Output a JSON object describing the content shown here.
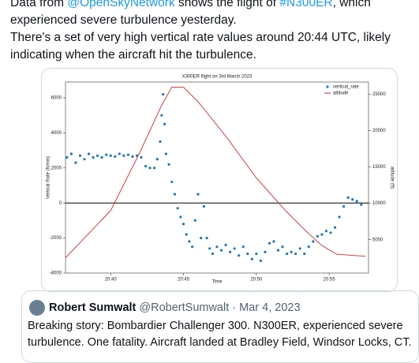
{
  "tweet": {
    "lines": [
      [
        "Data from ",
        "@OpenSkyNetwork",
        " shows the flight of ",
        "#N300ER",
        ", which"
      ],
      [
        "experienced severe turbulence yesterday."
      ],
      [
        "There's a set of very high vertical rate values around 20:44 UTC, likely"
      ],
      [
        "indicating when the aircraft hit the turbulence."
      ]
    ]
  },
  "chart_data": {
    "type": "scatter",
    "title": "X300ER flight on 3rd March 2023",
    "x_label": "Time",
    "y_label": "Vertical Rate (ft/min)",
    "y2_label": "altitude (ft)",
    "xlim": [
      36.9,
      57.7
    ],
    "xticks": [
      {
        "value": 40,
        "label": "20:40"
      },
      {
        "value": 45,
        "label": "20:45"
      },
      {
        "value": 50,
        "label": "20:50"
      },
      {
        "value": 55,
        "label": "20:55"
      }
    ],
    "ylim": [
      -4000,
      6900
    ],
    "yticks": [
      -4000,
      -2000,
      0,
      2000,
      4000,
      6000
    ],
    "y2lim": [
      400,
      26700
    ],
    "y2ticks": [
      5000,
      10000,
      15000,
      20000,
      25000
    ],
    "reference_line": 0,
    "legend": "upper right",
    "series": [
      {
        "name": "vertical_rate",
        "color": "#1f77b4",
        "type": "scatter",
        "x": [
          37,
          37.3,
          37.6,
          37.9,
          38.2,
          38.5,
          38.8,
          39.1,
          39.4,
          39.7,
          40,
          40.3,
          40.6,
          40.9,
          41.2,
          41.5,
          41.8,
          42.1,
          42.4,
          42.7,
          43,
          43.2,
          43.4,
          43.5,
          43.6,
          43.7,
          43.8,
          44,
          44.2,
          44.4,
          44.6,
          44.8,
          45,
          45.2,
          45.4,
          45.6,
          45.8,
          46,
          46.2,
          46.4,
          46.6,
          46.8,
          47,
          47.3,
          47.6,
          47.9,
          48.2,
          48.5,
          48.8,
          49.1,
          49.4,
          49.7,
          50,
          50.3,
          50.6,
          50.9,
          51.2,
          51.5,
          51.8,
          52.1,
          52.4,
          52.7,
          53,
          53.3,
          53.6,
          53.9,
          54.2,
          54.5,
          54.8,
          55.1,
          55.4,
          55.7,
          56,
          56.3,
          56.6,
          56.9,
          57.2
        ],
        "values": [
          2600,
          2800,
          2300,
          2700,
          2500,
          2800,
          2600,
          2700,
          2600,
          2750,
          2700,
          2650,
          2800,
          2700,
          2750,
          2650,
          2700,
          2600,
          2100,
          2000,
          2000,
          2500,
          3500,
          5000,
          6200,
          4500,
          2800,
          2200,
          1200,
          500,
          -300,
          -800,
          -1200,
          -1800,
          -2200,
          -2500,
          -1000,
          500,
          -2000,
          -200,
          -2000,
          -2600,
          -2900,
          -2500,
          -2700,
          -2400,
          -2800,
          -2600,
          -3000,
          -2500,
          -2900,
          -3200,
          -2900,
          -3300,
          -2800,
          -2300,
          -2200,
          -2700,
          -2500,
          -2900,
          -2800,
          -2900,
          -2600,
          -2900,
          -2500,
          -2200,
          -1900,
          -1800,
          -1600,
          -1700,
          -1400,
          -800,
          -200,
          300,
          200,
          100,
          -100
        ]
      },
      {
        "name": "altitude",
        "color": "#d62728",
        "type": "line",
        "axis": "y2",
        "x": [
          36.9,
          40,
          42,
          43.5,
          44.2,
          45,
          46,
          48,
          50,
          52,
          53.5,
          54.5,
          55.5,
          57.5
        ],
        "values": [
          2500,
          9000,
          17000,
          23500,
          26000,
          26000,
          24000,
          19000,
          13500,
          9000,
          6000,
          4200,
          3000,
          2700
        ]
      }
    ]
  },
  "quote": {
    "name": "Robert Sumwalt",
    "meta": "@RobertSumwalt · Mar 4, 2023",
    "lines": [
      "Breaking story: Bombardier Challenger 300. N300ER, experienced severe",
      "turbulence. One fatality. Aircraft landed at Bradley Field, Windsor Locks, CT."
    ]
  }
}
